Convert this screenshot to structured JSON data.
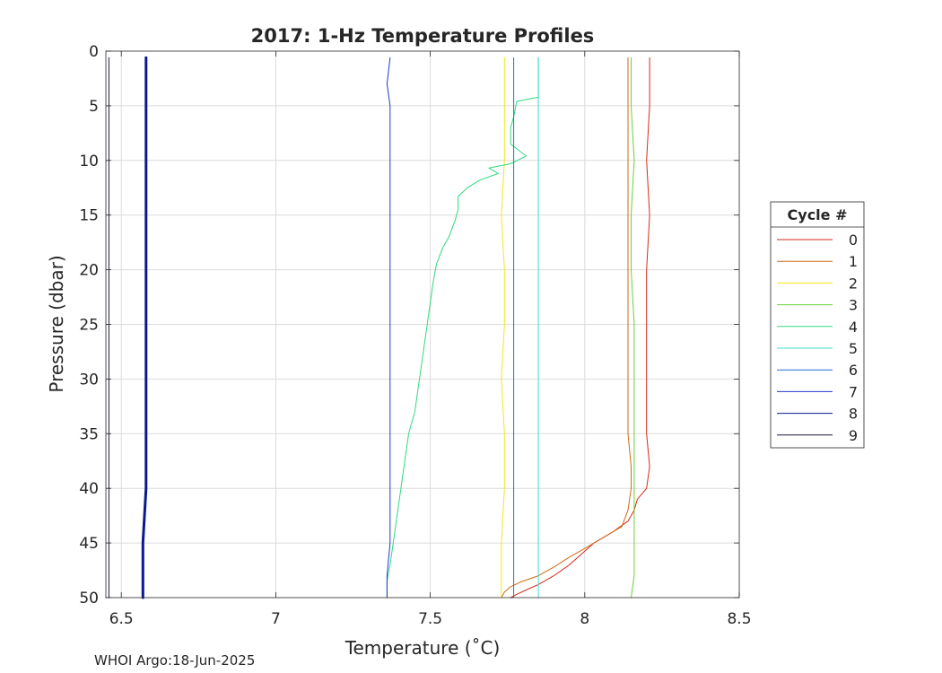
{
  "chart_data": {
    "type": "line",
    "title": "2017: 1-Hz Temperature Profiles",
    "xlabel": "Temperature (˚C)",
    "ylabel": "Pressure (dbar)",
    "xlim": [
      6.45,
      8.5
    ],
    "ylim": [
      0,
      50
    ],
    "y_reversed": true,
    "x_ticks": [
      6.5,
      7,
      7.5,
      8,
      8.5
    ],
    "x_tick_labels": [
      "6.5",
      "7",
      "7.5",
      "8",
      "8.5"
    ],
    "y_ticks": [
      0,
      5,
      10,
      15,
      20,
      25,
      30,
      35,
      40,
      45,
      50
    ],
    "y_tick_labels": [
      "0",
      "5",
      "10",
      "15",
      "20",
      "25",
      "30",
      "35",
      "40",
      "45",
      "50"
    ],
    "grid": true,
    "legend": {
      "title": "Cycle #",
      "placement": "outside-right"
    },
    "footer": "WHOI Argo:18-Jun-2025",
    "series": [
      {
        "name": "0",
        "color": "#d42a1a",
        "width": 1,
        "points": [
          [
            8.21,
            0.6
          ],
          [
            8.21,
            5
          ],
          [
            8.2,
            10
          ],
          [
            8.21,
            15
          ],
          [
            8.2,
            20
          ],
          [
            8.2,
            25
          ],
          [
            8.2,
            30
          ],
          [
            8.2,
            35
          ],
          [
            8.21,
            38
          ],
          [
            8.2,
            40
          ],
          [
            8.17,
            41
          ],
          [
            8.16,
            42
          ],
          [
            8.14,
            43
          ],
          [
            8.09,
            44
          ],
          [
            8.03,
            45
          ],
          [
            7.99,
            46
          ],
          [
            7.95,
            47
          ],
          [
            7.9,
            48
          ],
          [
            7.85,
            48.8
          ],
          [
            7.81,
            49.3
          ],
          [
            7.78,
            49.7
          ],
          [
            7.76,
            50
          ]
        ]
      },
      {
        "name": "1",
        "color": "#cf6a10",
        "width": 1,
        "points": [
          [
            8.14,
            0.6
          ],
          [
            8.14,
            5
          ],
          [
            8.14,
            10
          ],
          [
            8.14,
            15
          ],
          [
            8.14,
            20
          ],
          [
            8.14,
            25
          ],
          [
            8.14,
            30
          ],
          [
            8.14,
            35
          ],
          [
            8.15,
            38
          ],
          [
            8.15,
            40
          ],
          [
            8.14,
            42
          ],
          [
            8.12,
            43.5
          ],
          [
            8.06,
            44.5
          ],
          [
            8.0,
            45.5
          ],
          [
            7.95,
            46.3
          ],
          [
            7.9,
            47.2
          ],
          [
            7.85,
            48
          ],
          [
            7.79,
            48.6
          ],
          [
            7.76,
            49
          ],
          [
            7.74,
            49.5
          ],
          [
            7.73,
            50
          ]
        ]
      },
      {
        "name": "2",
        "color": "#f5e61a",
        "width": 1,
        "points": [
          [
            7.74,
            0.6
          ],
          [
            7.74,
            5
          ],
          [
            7.74,
            10
          ],
          [
            7.73,
            15
          ],
          [
            7.74,
            20
          ],
          [
            7.74,
            25
          ],
          [
            7.73,
            30
          ],
          [
            7.74,
            35
          ],
          [
            7.74,
            40
          ],
          [
            7.73,
            45
          ],
          [
            7.73,
            50
          ]
        ]
      },
      {
        "name": "3",
        "color": "#6fcf3a",
        "width": 1,
        "points": [
          [
            8.15,
            0.6
          ],
          [
            8.15,
            5
          ],
          [
            8.16,
            10
          ],
          [
            8.15,
            15
          ],
          [
            8.15,
            20
          ],
          [
            8.16,
            25
          ],
          [
            8.16,
            30
          ],
          [
            8.16,
            35
          ],
          [
            8.16,
            40
          ],
          [
            8.16,
            42
          ],
          [
            8.16,
            45
          ],
          [
            8.16,
            48
          ],
          [
            8.15,
            50
          ]
        ]
      },
      {
        "name": "4",
        "color": "#30d97f",
        "width": 1,
        "points": [
          [
            7.85,
            0.6
          ],
          [
            7.85,
            2.5
          ],
          [
            7.85,
            4.2
          ],
          [
            7.78,
            4.6
          ],
          [
            7.77,
            6
          ],
          [
            7.76,
            7
          ],
          [
            7.76,
            8.5
          ],
          [
            7.81,
            9.6
          ],
          [
            7.76,
            10.3
          ],
          [
            7.69,
            10.7
          ],
          [
            7.72,
            11.2
          ],
          [
            7.66,
            11.8
          ],
          [
            7.62,
            12.5
          ],
          [
            7.59,
            13.3
          ],
          [
            7.59,
            14.5
          ],
          [
            7.58,
            15.5
          ],
          [
            7.56,
            17
          ],
          [
            7.54,
            18
          ],
          [
            7.52,
            19.5
          ],
          [
            7.51,
            21
          ],
          [
            7.5,
            23
          ],
          [
            7.49,
            25
          ],
          [
            7.48,
            27
          ],
          [
            7.47,
            29
          ],
          [
            7.46,
            31
          ],
          [
            7.45,
            33
          ],
          [
            7.43,
            35
          ],
          [
            7.42,
            37
          ],
          [
            7.41,
            39
          ],
          [
            7.4,
            41
          ],
          [
            7.39,
            43
          ],
          [
            7.38,
            45
          ],
          [
            7.37,
            47
          ],
          [
            7.36,
            48.5
          ],
          [
            7.36,
            50
          ]
        ]
      },
      {
        "name": "5",
        "color": "#40dbd6",
        "width": 1,
        "points": [
          [
            7.85,
            0.6
          ],
          [
            7.85,
            5
          ],
          [
            7.85,
            10
          ],
          [
            7.85,
            15
          ],
          [
            7.85,
            20
          ],
          [
            7.85,
            25
          ],
          [
            7.85,
            30
          ],
          [
            7.85,
            35
          ],
          [
            7.85,
            40
          ],
          [
            7.85,
            45
          ],
          [
            7.85,
            50
          ]
        ]
      },
      {
        "name": "6",
        "color": "#1f6fd6",
        "width": 1,
        "points": [
          [
            7.77,
            0.6
          ],
          [
            7.77,
            5
          ],
          [
            7.77,
            10
          ],
          [
            7.77,
            15
          ],
          [
            7.77,
            20
          ],
          [
            7.77,
            25
          ],
          [
            7.77,
            30
          ],
          [
            7.77,
            35
          ],
          [
            7.77,
            40
          ],
          [
            7.77,
            45
          ],
          [
            7.77,
            50
          ]
        ]
      },
      {
        "name": "7",
        "color": "#2138c9",
        "width": 1,
        "points": [
          [
            7.37,
            0.6
          ],
          [
            7.36,
            3
          ],
          [
            7.37,
            5
          ],
          [
            7.37,
            10
          ],
          [
            7.37,
            15
          ],
          [
            7.37,
            20
          ],
          [
            7.37,
            25
          ],
          [
            7.37,
            30
          ],
          [
            7.37,
            35
          ],
          [
            7.37,
            40
          ],
          [
            7.37,
            45
          ],
          [
            7.36,
            48
          ],
          [
            7.36,
            50
          ]
        ]
      },
      {
        "name": "8",
        "color": "#0a1a8c",
        "width": 3,
        "points": [
          [
            6.58,
            0.6
          ],
          [
            6.58,
            5
          ],
          [
            6.58,
            10
          ],
          [
            6.58,
            15
          ],
          [
            6.58,
            20
          ],
          [
            6.58,
            25
          ],
          [
            6.58,
            30
          ],
          [
            6.58,
            35
          ],
          [
            6.58,
            40
          ],
          [
            6.57,
            45
          ],
          [
            6.57,
            50
          ]
        ]
      },
      {
        "name": "9",
        "color": "#1a1a40",
        "width": 1,
        "points": [
          [
            6.46,
            0.6
          ],
          [
            6.46,
            5
          ],
          [
            6.46,
            10
          ],
          [
            6.46,
            15
          ],
          [
            6.46,
            20
          ],
          [
            6.46,
            25
          ],
          [
            6.46,
            30
          ],
          [
            6.46,
            35
          ],
          [
            6.46,
            40
          ],
          [
            6.46,
            45
          ],
          [
            6.46,
            50
          ]
        ]
      }
    ]
  }
}
